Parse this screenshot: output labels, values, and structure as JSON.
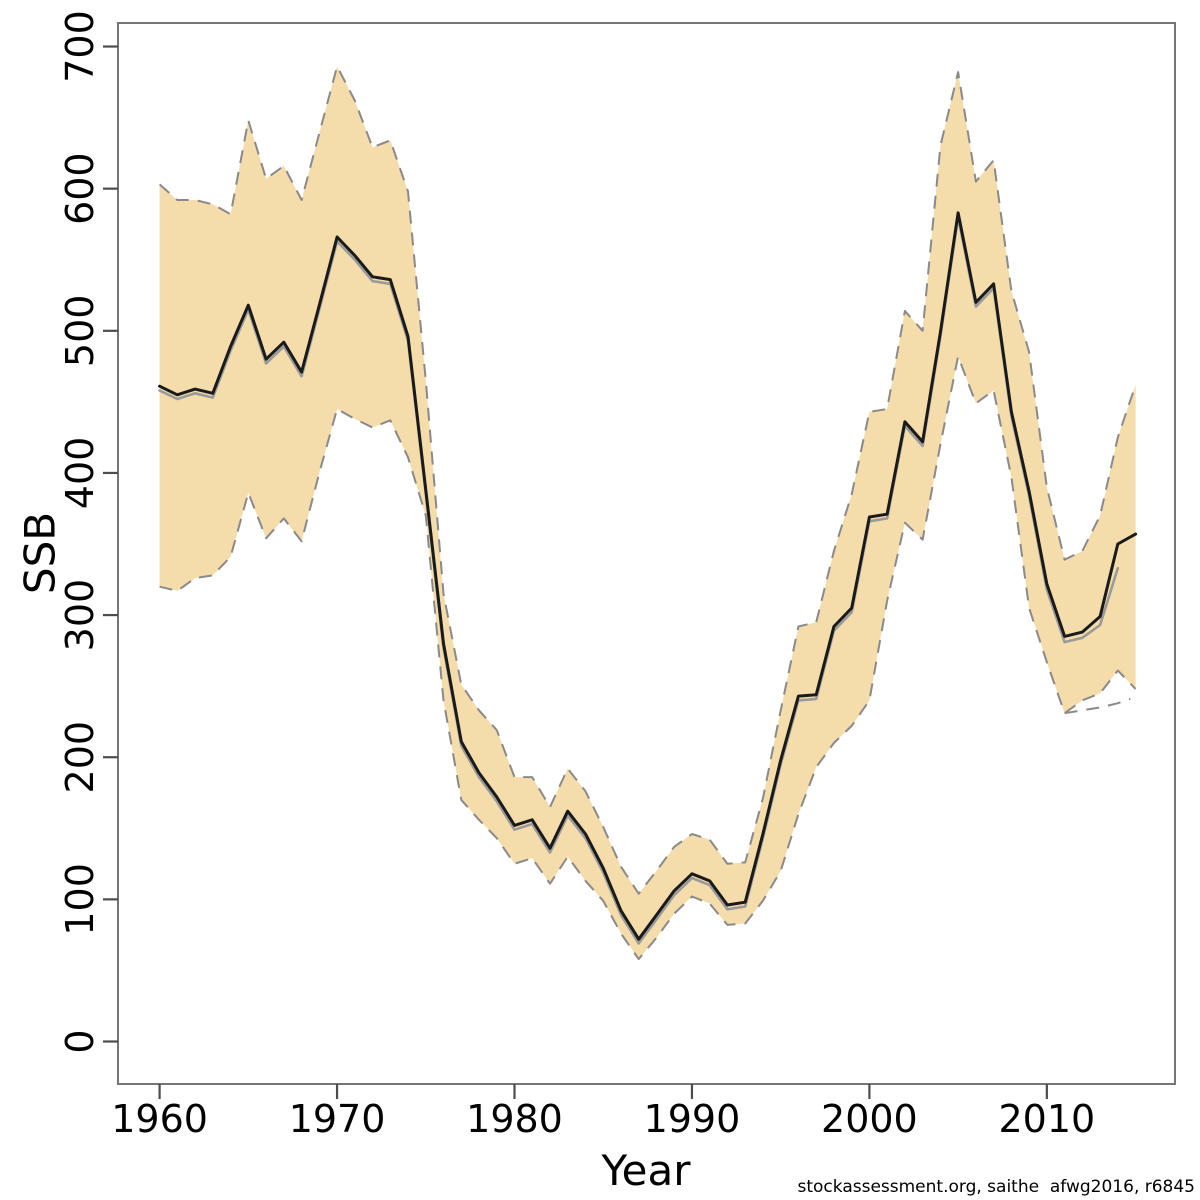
{
  "chart_data": {
    "type": "line",
    "title": "",
    "xlabel": "Year",
    "ylabel": "SSB",
    "footer": "stockassessment.org, saithe  afwg2016, r6845",
    "grid": false,
    "legend": "none",
    "xlim": [
      1957.7,
      2017.2
    ],
    "ylim": [
      -30,
      717
    ],
    "x_ticks": [
      1960,
      1970,
      1980,
      1990,
      2000,
      2010
    ],
    "x_tick_labels": [
      "1960",
      "1970",
      "1980",
      "1990",
      "2000",
      "2010"
    ],
    "y_ticks": [
      0,
      100,
      200,
      300,
      400,
      500,
      600,
      700
    ],
    "y_tick_labels": [
      "0",
      "100",
      "200",
      "300",
      "400",
      "500",
      "600",
      "700"
    ],
    "years": [
      1960,
      1961,
      1962,
      1963,
      1964,
      1965,
      1966,
      1967,
      1968,
      1969,
      1970,
      1971,
      1972,
      1973,
      1974,
      1975,
      1976,
      1977,
      1978,
      1979,
      1980,
      1981,
      1982,
      1983,
      1984,
      1985,
      1986,
      1987,
      1988,
      1989,
      1990,
      1991,
      1992,
      1993,
      1994,
      1995,
      1996,
      1997,
      1998,
      1999,
      2000,
      2001,
      2002,
      2003,
      2004,
      2005,
      2006,
      2007,
      2008,
      2009,
      2010,
      2011,
      2012,
      2013,
      2014,
      2015
    ],
    "series": [
      {
        "name": "ssb-current-estimate",
        "style": "solid",
        "color": "#1a1a1a",
        "x0": 1960,
        "values": [
          461,
          455,
          459,
          456,
          489,
          518,
          480,
          492,
          471,
          518,
          566,
          553,
          538,
          536,
          496,
          388,
          280,
          211,
          189,
          172,
          152,
          156,
          136,
          162,
          146,
          122,
          92,
          72,
          89,
          106,
          118,
          113,
          96,
          98,
          146,
          198,
          243,
          244,
          292,
          305,
          369,
          371,
          436,
          422,
          499,
          583,
          520,
          533,
          443,
          387,
          322,
          285,
          288,
          299,
          350,
          357
        ]
      },
      {
        "name": "ssb-previous-estimate",
        "style": "solid",
        "color": "#9a9a9a",
        "x0": 1960,
        "values": [
          458,
          452,
          456,
          453,
          486,
          515,
          477,
          489,
          468,
          515,
          563,
          550,
          535,
          533,
          493,
          385,
          277,
          208,
          186,
          169,
          149,
          153,
          133,
          159,
          143,
          119,
          89,
          69,
          86,
          103,
          115,
          110,
          93,
          95,
          143,
          195,
          240,
          241,
          289,
          302,
          366,
          368,
          433,
          419,
          496,
          580,
          517,
          530,
          440,
          384,
          318,
          281,
          284,
          293,
          333
        ]
      },
      {
        "name": "ci-upper",
        "style": "dashed",
        "color": "#8a8a8a",
        "x0": 1960,
        "values": [
          603,
          592,
          592,
          589,
          582,
          648,
          607,
          616,
          592,
          639,
          686,
          662,
          629,
          634,
          598,
          465,
          315,
          251,
          233,
          219,
          186,
          186,
          165,
          192,
          176,
          151,
          123,
          104,
          120,
          137,
          146,
          142,
          125,
          126,
          171,
          233,
          292,
          295,
          345,
          385,
          443,
          445,
          514,
          500,
          630,
          682,
          605,
          620,
          528,
          485,
          390,
          339,
          345,
          370,
          425,
          462
        ]
      },
      {
        "name": "ci-lower",
        "style": "dashed",
        "color": "#8a8a8a",
        "x0": 1960,
        "values": [
          320,
          317,
          326,
          328,
          341,
          386,
          354,
          368,
          352,
          400,
          445,
          438,
          432,
          437,
          411,
          370,
          240,
          170,
          156,
          143,
          125,
          129,
          111,
          130,
          113,
          99,
          76,
          58,
          73,
          90,
          102,
          97,
          82,
          83,
          99,
          120,
          160,
          193,
          210,
          222,
          240,
          310,
          365,
          353,
          420,
          482,
          449,
          458,
          397,
          305,
          267,
          231,
          240,
          245,
          261,
          248
        ]
      }
    ],
    "extra_segments": [
      {
        "name": "previous-ci-lower-tail",
        "style": "dashed",
        "color": "#8a8a8a",
        "x": [
          2011,
          2012,
          2013,
          2014,
          2014.7
        ],
        "values": [
          231,
          233,
          235,
          238,
          241
        ]
      }
    ],
    "band_fill": "#f4dcab",
    "box_color": "#757575",
    "tick_color": "#4d4d4d",
    "label_color": "#000000"
  }
}
